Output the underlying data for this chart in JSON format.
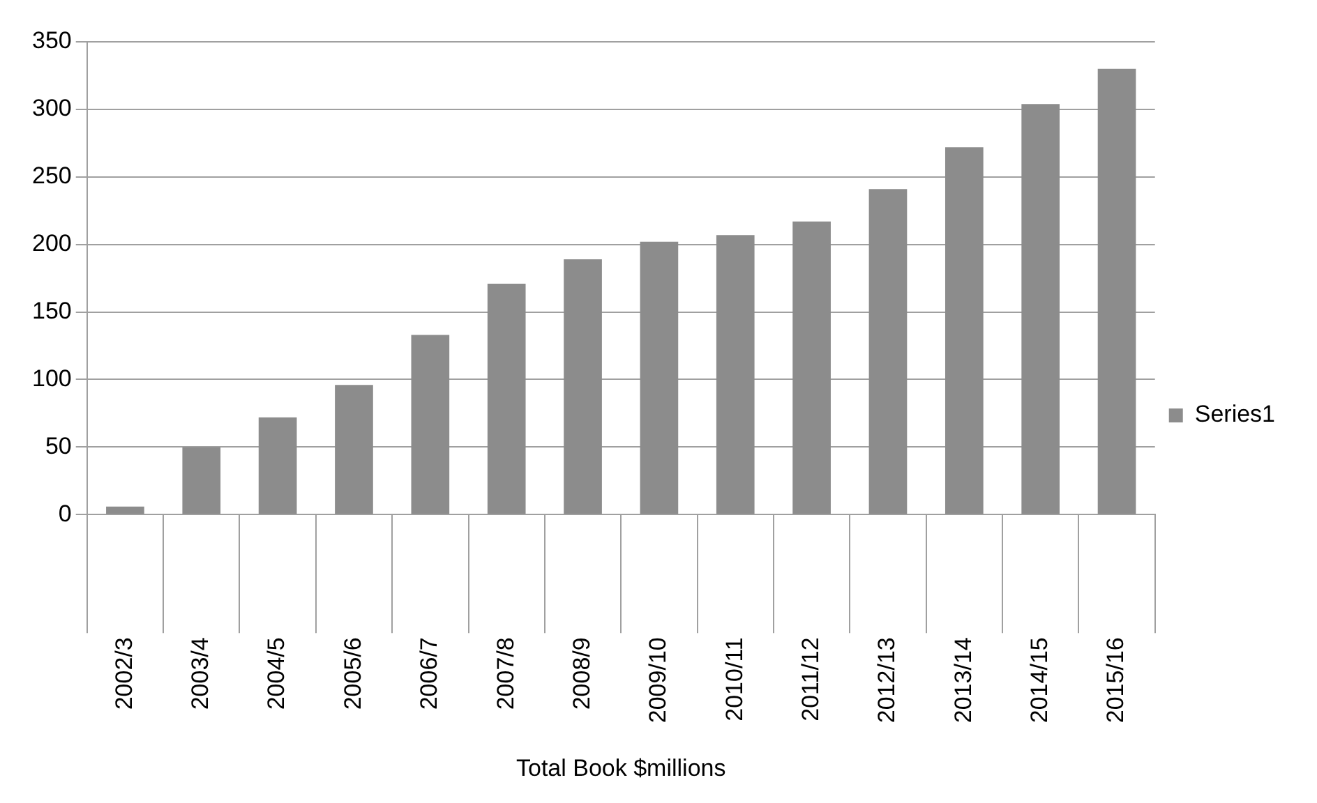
{
  "chart_data": {
    "type": "bar",
    "xlabel": "Total Book $millions",
    "categories": [
      "2002/3",
      "2003/4",
      "2004/5",
      "2005/6",
      "2006/7",
      "2007/8",
      "2008/9",
      "2009/10",
      "2010/11",
      "2011/12",
      "2012/13",
      "2013/14",
      "2014/15",
      "2015/16"
    ],
    "series": [
      {
        "name": "Series1",
        "color": "#8c8c8c",
        "values": [
          6,
          50,
          72,
          96,
          133,
          171,
          189,
          202,
          207,
          217,
          241,
          272,
          304,
          330
        ]
      }
    ],
    "ylim": [
      0,
      350
    ],
    "yticks": [
      0,
      50,
      100,
      150,
      200,
      250,
      300,
      350
    ],
    "grid": "y",
    "legend": "right"
  }
}
